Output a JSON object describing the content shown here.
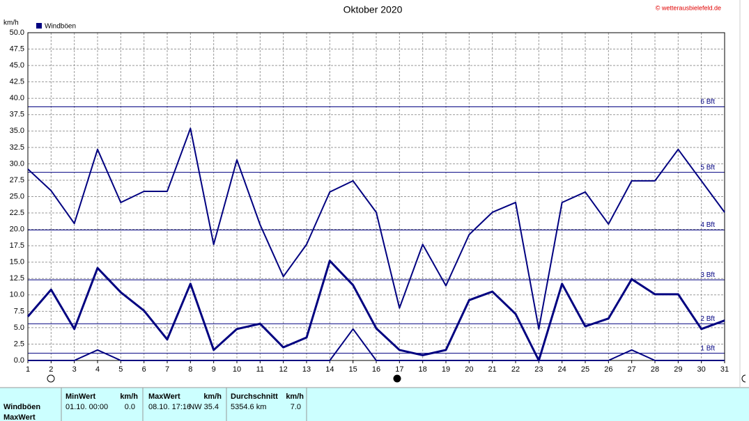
{
  "chart_data": {
    "type": "line",
    "title": "Oktober 2020",
    "source": "© wetterausbielefeld.de",
    "y_label": "km/h",
    "legend": "Windböen",
    "legend_color": "#000080",
    "x": [
      1,
      2,
      3,
      4,
      5,
      6,
      7,
      8,
      9,
      10,
      11,
      12,
      13,
      14,
      15,
      16,
      17,
      18,
      19,
      20,
      21,
      22,
      23,
      24,
      25,
      26,
      27,
      28,
      29,
      30,
      31
    ],
    "xlim": [
      1,
      31
    ],
    "xticks": [
      1,
      2,
      3,
      4,
      5,
      6,
      7,
      8,
      9,
      10,
      11,
      12,
      13,
      14,
      15,
      16,
      17,
      18,
      19,
      20,
      21,
      22,
      23,
      24,
      25,
      26,
      27,
      28,
      29,
      30,
      31
    ],
    "ylim": [
      0,
      50
    ],
    "yticks": [
      {
        "value": 0,
        "label": "0.0"
      },
      {
        "value": 2.5,
        "label": "2.5"
      },
      {
        "value": 5,
        "label": "5.0"
      },
      {
        "value": 7.5,
        "label": "7.5"
      },
      {
        "value": 10,
        "label": "10.0"
      },
      {
        "value": 12.5,
        "label": "12.5"
      },
      {
        "value": 15,
        "label": "15.0"
      },
      {
        "value": 17.5,
        "label": "17.5"
      },
      {
        "value": 20,
        "label": "20.0"
      },
      {
        "value": 22.5,
        "label": "22.5"
      },
      {
        "value": 25,
        "label": "25.0"
      },
      {
        "value": 27.5,
        "label": "27.5"
      },
      {
        "value": 30,
        "label": "30.0"
      },
      {
        "value": 32.5,
        "label": "32.5"
      },
      {
        "value": 35,
        "label": "35.0"
      },
      {
        "value": 37.5,
        "label": "37.5"
      },
      {
        "value": 40,
        "label": "40.0"
      },
      {
        "value": 42.5,
        "label": "42.5"
      },
      {
        "value": 45,
        "label": "45.0"
      },
      {
        "value": 47.5,
        "label": "47.5"
      },
      {
        "value": 50,
        "label": "50.0"
      }
    ],
    "grid": true,
    "reference_lines": [
      {
        "value": 1.1,
        "label": "1 Bft"
      },
      {
        "value": 5.6,
        "label": "2 Bft"
      },
      {
        "value": 12.3,
        "label": "3 Bft"
      },
      {
        "value": 19.9,
        "label": "4 Bft"
      },
      {
        "value": 28.7,
        "label": "5 Bft"
      },
      {
        "value": 38.7,
        "label": "6 Bft"
      }
    ],
    "series": [
      {
        "color": "#000080",
        "line_width": 2,
        "values": [
          29.2,
          25.9,
          20.9,
          32.2,
          24.1,
          25.8,
          25.8,
          35.4,
          17.7,
          30.6,
          20.7,
          12.8,
          17.7,
          25.7,
          27.4,
          22.6,
          8.0,
          17.7,
          11.4,
          19.2,
          22.6,
          24.1,
          4.8,
          24.1,
          25.7,
          20.8,
          27.4,
          27.4,
          32.2,
          27.4,
          22.6
        ]
      },
      {
        "color": "#000080",
        "line_width": 3,
        "values": [
          6.7,
          10.8,
          4.8,
          14.1,
          10.4,
          7.6,
          3.2,
          11.7,
          1.6,
          4.8,
          5.6,
          2.0,
          3.5,
          15.2,
          11.5,
          4.9,
          1.6,
          0.8,
          1.6,
          9.2,
          10.5,
          7.1,
          0.0,
          11.7,
          5.2,
          6.4,
          12.4,
          10.1,
          10.1,
          4.8,
          6.1
        ]
      },
      {
        "color": "#000080",
        "line_width": 2,
        "values": [
          0,
          0,
          0,
          1.6,
          0,
          0,
          0,
          0,
          0,
          0,
          0,
          0,
          0,
          0,
          4.8,
          0,
          0,
          0,
          0,
          0,
          0,
          0,
          0,
          0,
          0,
          0,
          1.6,
          0,
          0,
          0,
          0
        ]
      }
    ]
  },
  "stats_table": {
    "headers": [
      {
        "name": "MinWert",
        "unit": "km/h"
      },
      {
        "name": "MaxWert",
        "unit": "km/h"
      },
      {
        "name": "Durchschnitt",
        "unit": "km/h"
      }
    ],
    "rows": [
      {
        "label": "Windböen",
        "cells": [
          [
            "01.10.  00:00",
            "0.0"
          ],
          [
            "08.10.  17:16",
            "NW 35.4"
          ],
          [
            "5354.6 km",
            "7.0"
          ]
        ]
      },
      {
        "label": "MaxWert"
      }
    ]
  }
}
